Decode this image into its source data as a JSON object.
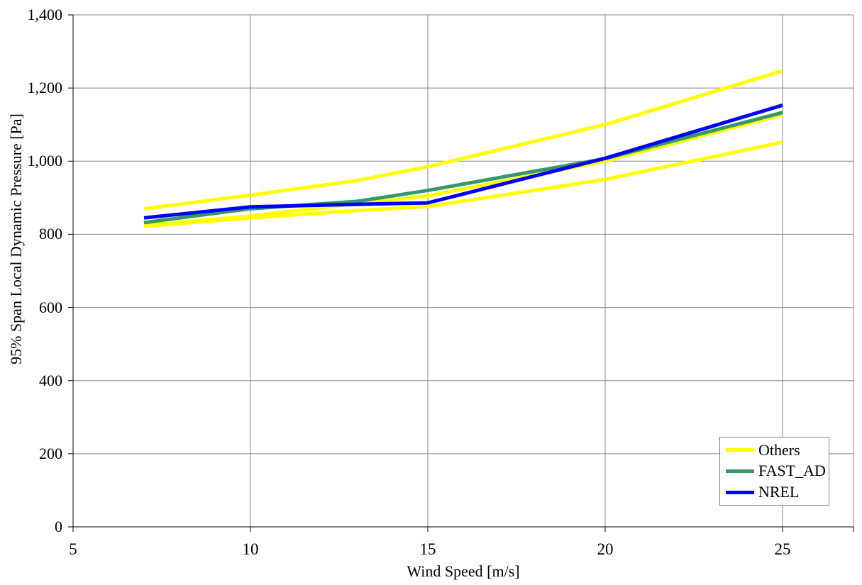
{
  "page": {
    "background": "#FFFFFF"
  },
  "chart_data": {
    "type": "line",
    "title": "",
    "xlabel": "Wind Speed [m/s]",
    "ylabel": "95% Span Local Dynamic Pressure [Pa]",
    "xlim": [
      5,
      27
    ],
    "ylim": [
      0,
      1400
    ],
    "x_ticks": [
      5,
      10,
      15,
      20,
      25
    ],
    "y_ticks": [
      0,
      200,
      400,
      600,
      800,
      1000,
      1200,
      1400
    ],
    "y_tick_labels": [
      "0",
      "200",
      "400",
      "600",
      "800",
      "1,000",
      "1,200",
      "1,400"
    ],
    "grid": true,
    "x": [
      7,
      10,
      13,
      15,
      20,
      25
    ],
    "series": [
      {
        "name": "Others",
        "color": "#FFFF00",
        "values": [
          870,
          907,
          947,
          985,
          1100,
          1247
        ]
      },
      {
        "name": "Others",
        "color": "#FFFF00",
        "values": [
          824,
          850,
          884,
          905,
          1000,
          1127
        ]
      },
      {
        "name": "Others",
        "color": "#FFFF00",
        "values": [
          822,
          845,
          865,
          876,
          950,
          1052
        ]
      },
      {
        "name": "FAST_AD",
        "color": "#339966",
        "values": [
          832,
          870,
          890,
          920,
          1007,
          1133
        ]
      },
      {
        "name": "NREL",
        "color": "#0000FF",
        "values": [
          845,
          875,
          882,
          886,
          1008,
          1153
        ]
      }
    ],
    "legend": {
      "position": "lower-right",
      "items": [
        {
          "label": "Others",
          "color": "#FFFF00"
        },
        {
          "label": "FAST_AD",
          "color": "#339966"
        },
        {
          "label": "NREL",
          "color": "#0000FF"
        }
      ]
    },
    "colors": {
      "gridline": "#848484",
      "axis": "#000000",
      "line_width": 5
    }
  }
}
